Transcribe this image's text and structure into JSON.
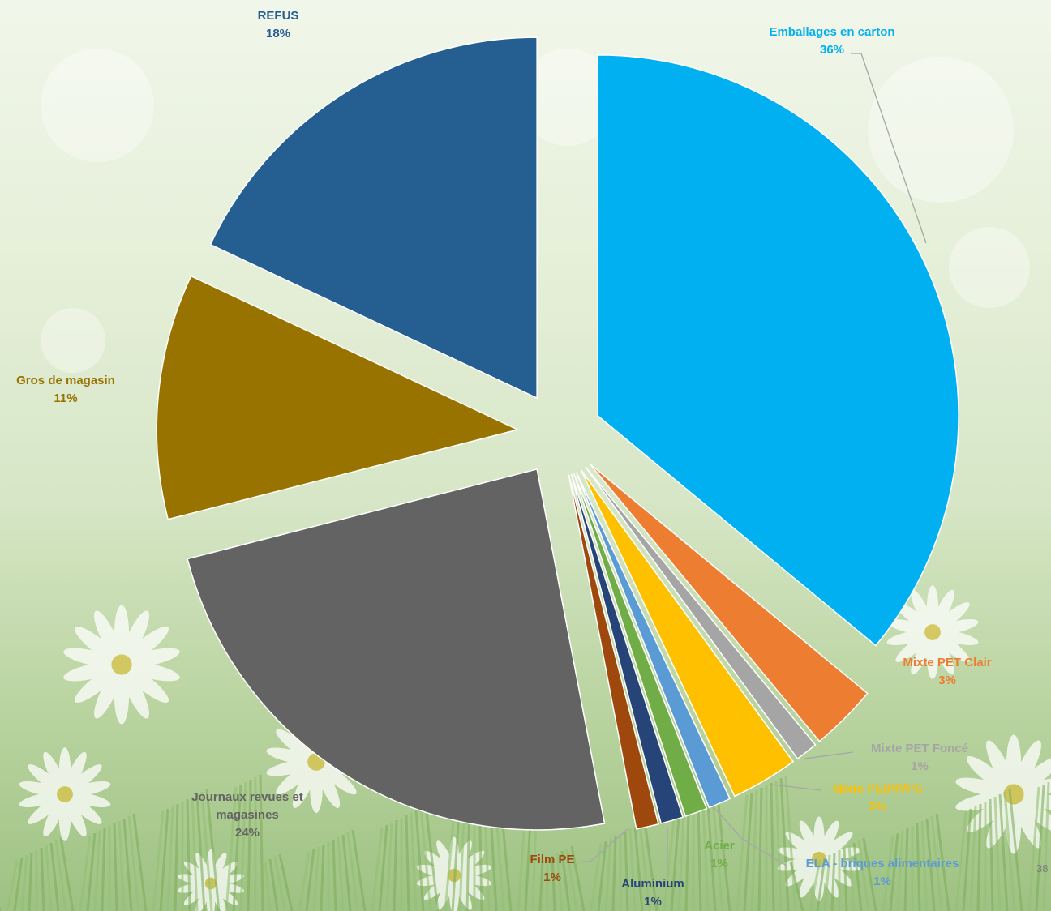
{
  "page_number": "38",
  "chart_data": {
    "type": "pie",
    "exploded": true,
    "start_angle_deg": 0,
    "direction": "clockwise",
    "slices": [
      {
        "label": "Emballages en carton",
        "percent_label": "36%",
        "value": 36,
        "color": "#00b0f0",
        "label_color": "#00b0f0",
        "leader_line": true
      },
      {
        "label": "Mixte PET Clair",
        "percent_label": "3%",
        "value": 3,
        "color": "#ed7d31",
        "label_color": "#ed7d31",
        "leader_line": false
      },
      {
        "label": "Mixte PET Foncé",
        "percent_label": "1%",
        "value": 1,
        "color": "#a5a5a5",
        "label_color": "#a5a5a5",
        "leader_line": true
      },
      {
        "label": "Mixte PE/PP/PS",
        "percent_label": "3%",
        "value": 3,
        "color": "#ffc000",
        "label_color": "#ffc000",
        "leader_line": true
      },
      {
        "label": "ELA - briques alimentaires",
        "percent_label": "1%",
        "value": 1,
        "color": "#5b9bd5",
        "label_color": "#5b9bd5",
        "leader_line": true
      },
      {
        "label": "Acier",
        "percent_label": "1%",
        "value": 1,
        "color": "#70ad47",
        "label_color": "#70ad47",
        "leader_line": false
      },
      {
        "label": "Aluminium",
        "percent_label": "1%",
        "value": 1,
        "color": "#264478",
        "label_color": "#264478",
        "leader_line": true
      },
      {
        "label": "Film PE",
        "percent_label": "1%",
        "value": 1,
        "color": "#9e480e",
        "label_color": "#9e480e",
        "leader_line": true
      },
      {
        "label": "Journaux revues et magasines",
        "percent_label": "24%",
        "value": 24,
        "color": "#636363",
        "label_color": "#636363",
        "leader_line": false
      },
      {
        "label": "Gros de magasin",
        "percent_label": "11%",
        "value": 11,
        "color": "#997300",
        "label_color": "#997300",
        "leader_line": false
      },
      {
        "label": "REFUS",
        "percent_label": "18%",
        "value": 18,
        "color": "#255e91",
        "label_color": "#255e91",
        "leader_line": false
      }
    ]
  }
}
